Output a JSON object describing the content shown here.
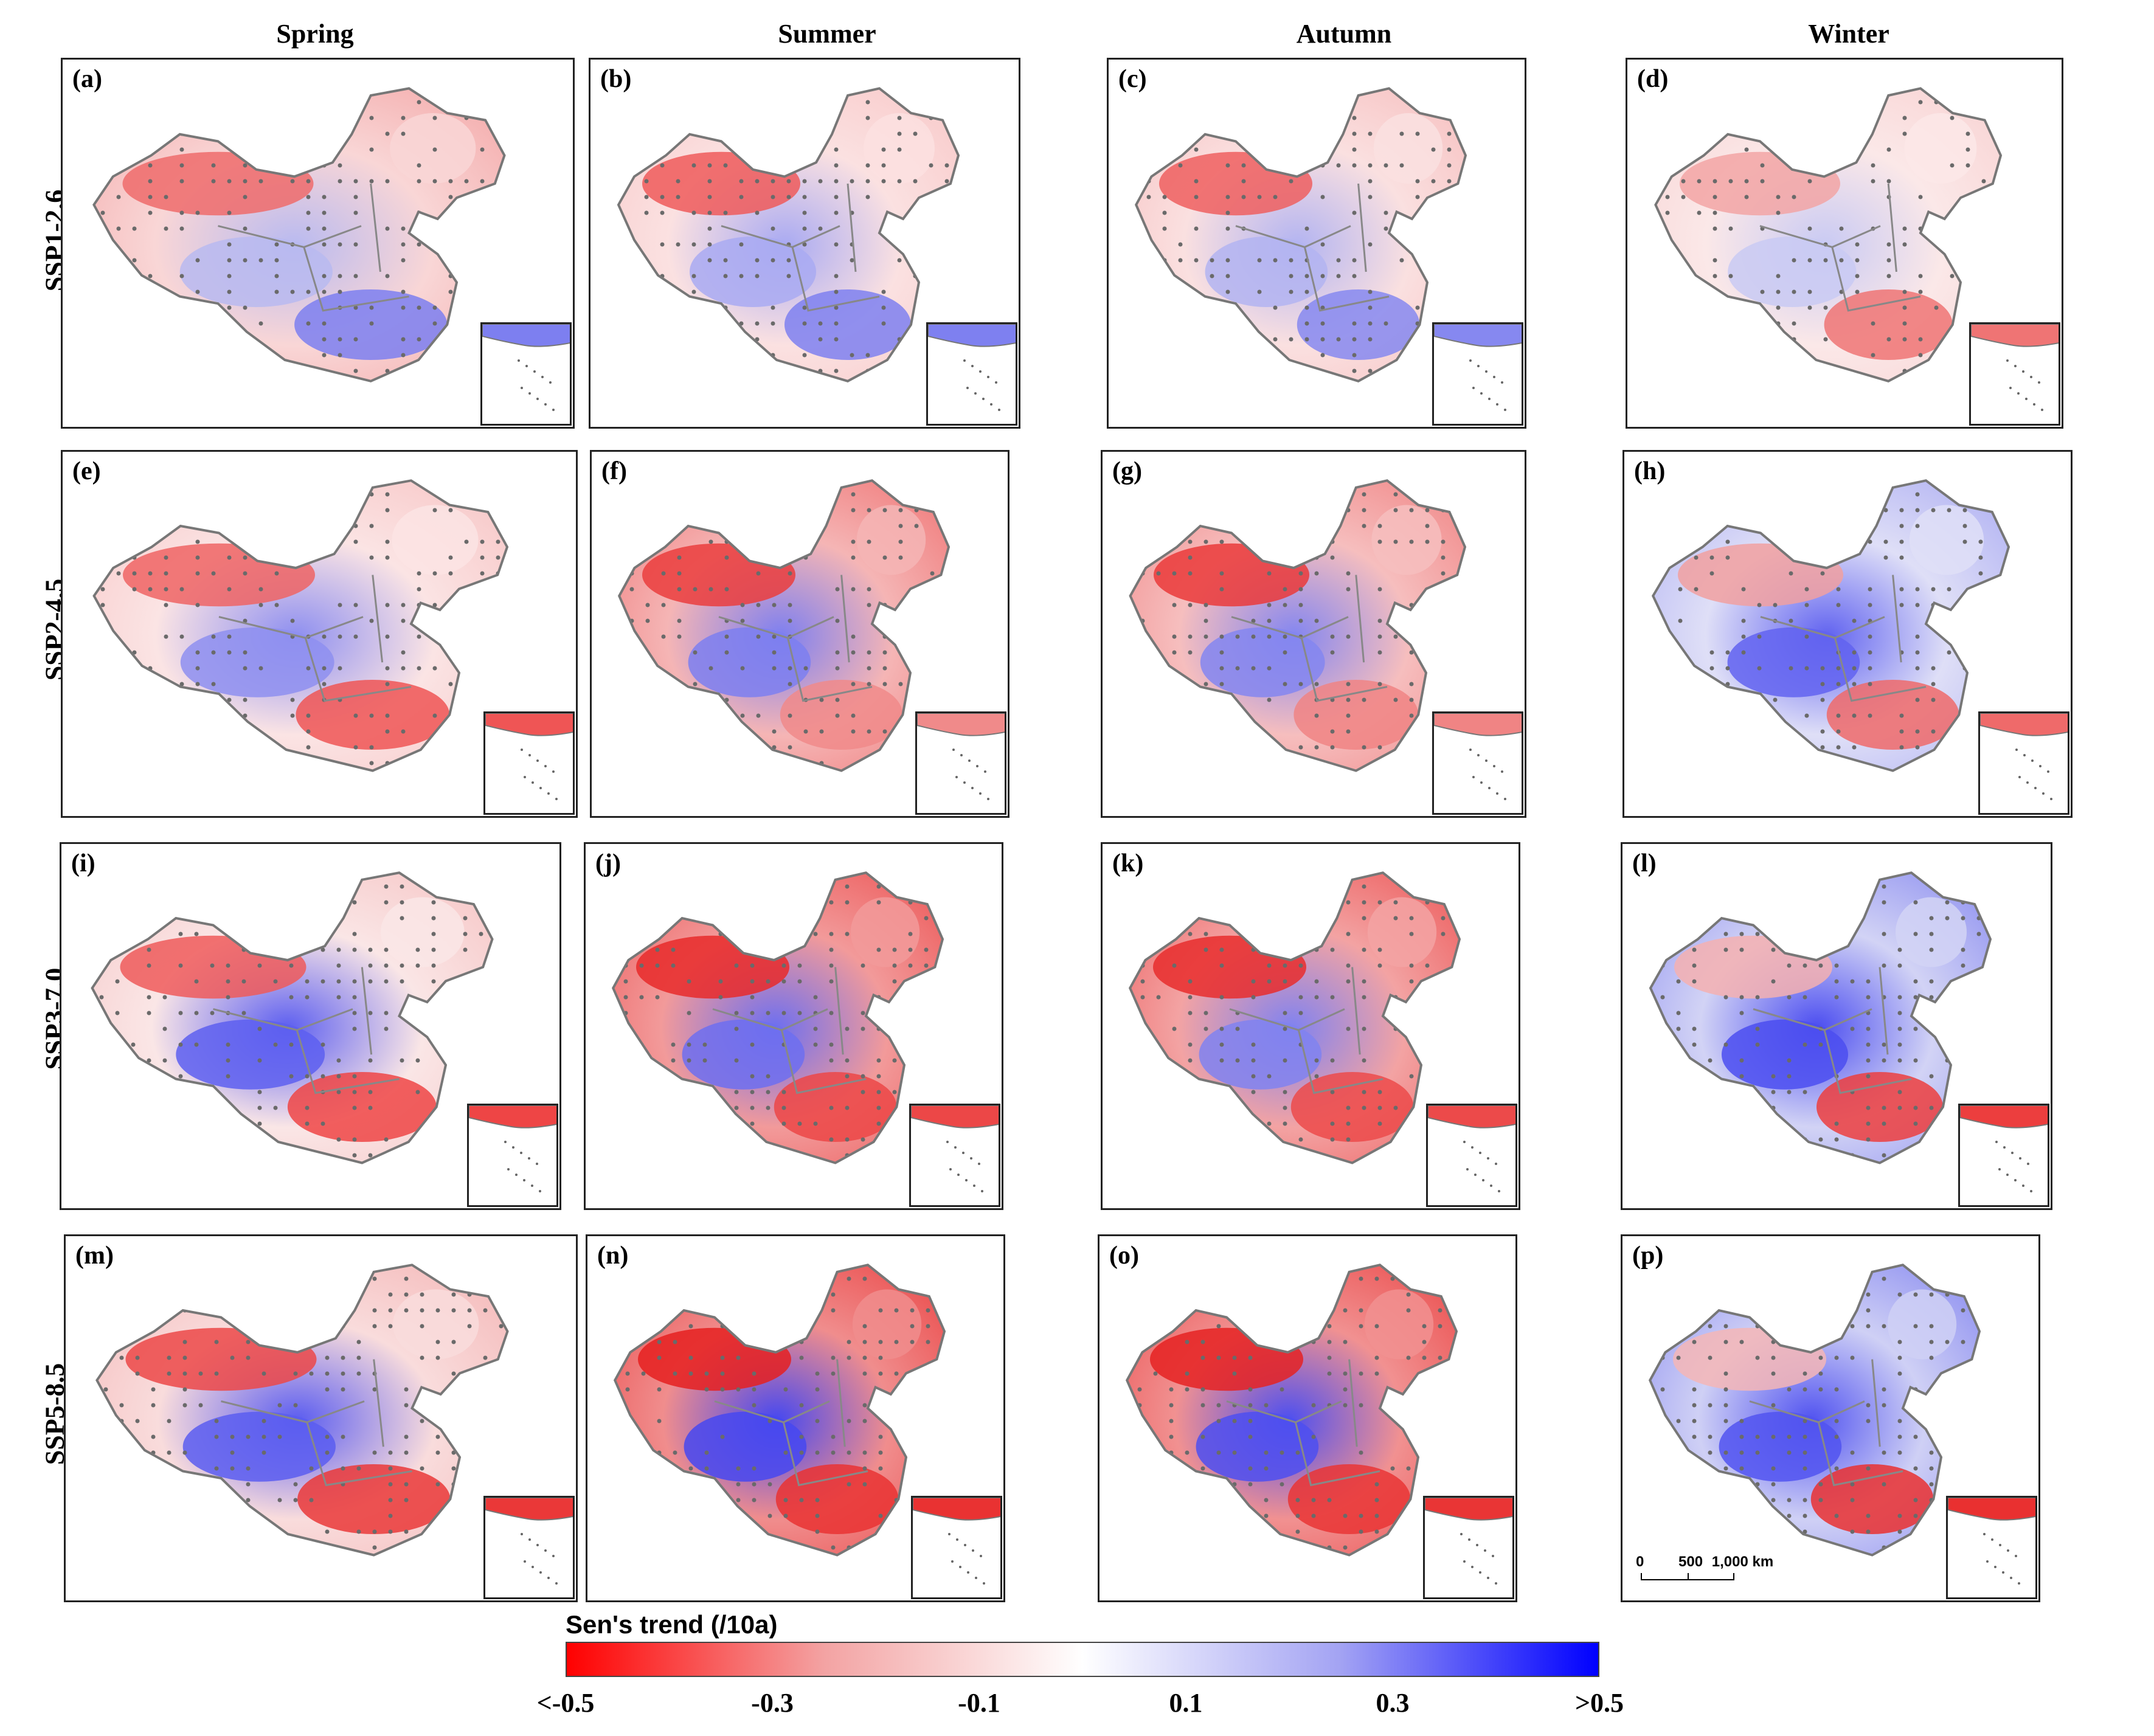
{
  "seasons": [
    "Spring",
    "Summer",
    "Autumn",
    "Winter"
  ],
  "scenarios": [
    "SSP1-2.6",
    "SSP2-4.5",
    "SSP3-7.0",
    "SSP5-8.5"
  ],
  "panels": [
    {
      "label": "(a)",
      "pattern": [
        "#f3a4a4",
        "#ef6b6b",
        "#f9d6d6",
        "#b9baf0",
        "#7d7ff0"
      ]
    },
    {
      "label": "(b)",
      "pattern": [
        "#f8c6c6",
        "#ee5a5a",
        "#fbe1e1",
        "#a9aaf2",
        "#7e80f0"
      ]
    },
    {
      "label": "(c)",
      "pattern": [
        "#f7bcbc",
        "#ee5f5f",
        "#fae0e0",
        "#b3b4f1",
        "#8688f0"
      ]
    },
    {
      "label": "(d)",
      "pattern": [
        "#f8d0d0",
        "#f2a4a4",
        "#fbe8e8",
        "#c9caf3",
        "#ef7474"
      ]
    },
    {
      "label": "(e)",
      "pattern": [
        "#f7c2c2",
        "#ef6464",
        "#fbe4e4",
        "#8e8ff0",
        "#ef5555"
      ]
    },
    {
      "label": "(f)",
      "pattern": [
        "#ef7070",
        "#ea3d3d",
        "#f5b5b5",
        "#7d7ff0",
        "#f08a8a"
      ]
    },
    {
      "label": "(g)",
      "pattern": [
        "#f08080",
        "#ea3a3a",
        "#f6bebe",
        "#8486f0",
        "#f08484"
      ]
    },
    {
      "label": "(h)",
      "pattern": [
        "#a8a9f2",
        "#f1a0a0",
        "#dfdff7",
        "#6163f0",
        "#ef6a6a"
      ]
    },
    {
      "label": "(i)",
      "pattern": [
        "#f6c2c2",
        "#ee5a5a",
        "#fae6e6",
        "#5d5ff0",
        "#ee4545"
      ]
    },
    {
      "label": "(j)",
      "pattern": [
        "#ec5050",
        "#e82a2a",
        "#f29a9a",
        "#6d6ff0",
        "#ec4747"
      ]
    },
    {
      "label": "(k)",
      "pattern": [
        "#ec5353",
        "#e82d2d",
        "#f3a3a3",
        "#8082f0",
        "#ec4a4a"
      ]
    },
    {
      "label": "(l)",
      "pattern": [
        "#8587f0",
        "#f4b0b0",
        "#d2d3f5",
        "#4b4df0",
        "#ec3e3e"
      ]
    },
    {
      "label": "(m)",
      "pattern": [
        "#f4b4b4",
        "#ec4848",
        "#f9dcdc",
        "#5b5df0",
        "#ea3838"
      ]
    },
    {
      "label": "(n)",
      "pattern": [
        "#ea4040",
        "#e52020",
        "#f08d8d",
        "#4648f0",
        "#e93232"
      ]
    },
    {
      "label": "(o)",
      "pattern": [
        "#ea4444",
        "#e52222",
        "#f19191",
        "#4d4ff0",
        "#e93535"
      ]
    },
    {
      "label": "(p)",
      "pattern": [
        "#8082f0",
        "#f4b6b6",
        "#cfd0f5",
        "#5153f0",
        "#e93030"
      ]
    }
  ],
  "legend": {
    "title": "Sen's trend (/10a)",
    "ticks": [
      "<-0.5",
      "-0.3",
      "-0.1",
      "0.1",
      "0.3",
      ">0.5"
    ],
    "colors": [
      "#ff0000",
      "#f3a3a3",
      "#ffffff",
      "#a3a3f3",
      "#0000ff"
    ]
  },
  "scale_bar": {
    "labels": [
      "0",
      "500",
      "1,000 km"
    ]
  }
}
